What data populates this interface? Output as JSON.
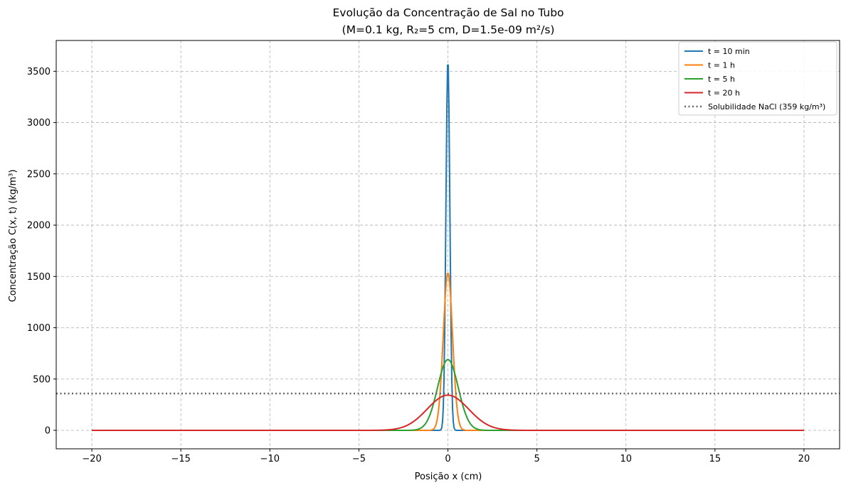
{
  "chart_data": {
    "type": "line",
    "title_line1": "Evolução da Concentração de Sal no Tubo",
    "title_line2": "(M=0.1 kg, R₂=5 cm, D=1.5e-09 m²/s)",
    "xlabel": "Posição x (cm)",
    "ylabel": "Concentração C(x, t) (kg/m³)",
    "xlim": [
      -22,
      22
    ],
    "ylim": [
      -180,
      3800
    ],
    "xticks": [
      -20,
      -15,
      -10,
      -5,
      0,
      5,
      10,
      15,
      20
    ],
    "xtick_labels": [
      "−20",
      "−15",
      "−10",
      "−5",
      "0",
      "5",
      "10",
      "15",
      "20"
    ],
    "yticks": [
      0,
      500,
      1000,
      1500,
      2000,
      2500,
      3000,
      3500
    ],
    "ytick_labels": [
      "0",
      "500",
      "1000",
      "1500",
      "2000",
      "2500",
      "3000",
      "3500"
    ],
    "grid": true,
    "legend_position": "top-right",
    "x_range": [
      -20,
      20
    ],
    "series": [
      {
        "name": "t = 10 min",
        "color": "#1f77b4",
        "peak": 3620,
        "sigma": 0.11
      },
      {
        "name": "t = 1 h",
        "color": "#ff7f0e",
        "peak": 1535,
        "sigma": 0.26
      },
      {
        "name": "t = 5 h",
        "color": "#2ca02c",
        "peak": 690,
        "sigma": 0.58
      },
      {
        "name": "t = 20 h",
        "color": "#d62728",
        "peak": 343,
        "sigma": 1.16
      }
    ],
    "hline": {
      "name": "Solubilidade NaCl (359 kg/m³)",
      "y": 359,
      "color": "#666666",
      "style": "dotted"
    }
  }
}
